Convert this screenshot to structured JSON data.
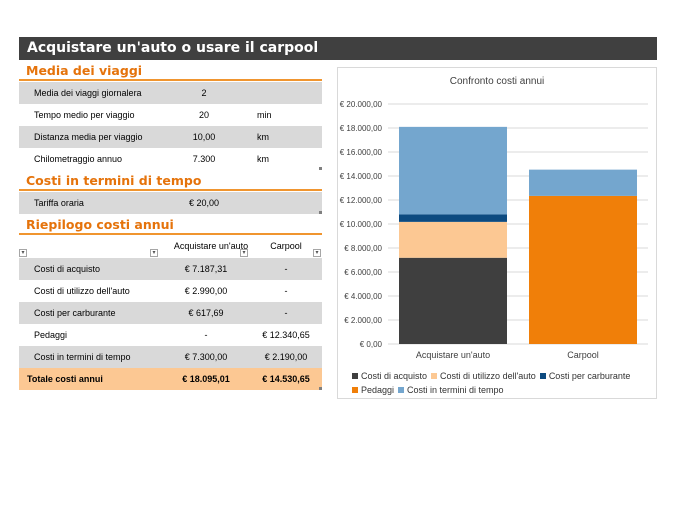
{
  "title": "Acquistare un'auto o usare il carpool",
  "trips": {
    "heading": "Media dei viaggi",
    "rows": [
      {
        "label": "Media dei viaggi giornalera",
        "value": "2",
        "unit": ""
      },
      {
        "label": "Tempo medio per viaggio",
        "value": "20",
        "unit": "min"
      },
      {
        "label": "Distanza media per viaggio",
        "value": "10,00",
        "unit": "km"
      },
      {
        "label": "Chilometraggio annuo",
        "value": "7.300",
        "unit": "km"
      }
    ]
  },
  "time_costs": {
    "heading": "Costi in termini di tempo",
    "rows": [
      {
        "label": "Tariffa oraria",
        "value": "€ 20,00"
      }
    ]
  },
  "summary": {
    "heading": "Riepilogo costi annui",
    "col1": "Acquistare un'auto",
    "col2": "Carpool",
    "rows": [
      {
        "label": "Costi di acquisto",
        "car": "€ 7.187,31",
        "pool": "-"
      },
      {
        "label": "Costi di utilizzo dell'auto",
        "car": "€ 2.990,00",
        "pool": "-"
      },
      {
        "label": "Costi per carburante",
        "car": "€ 617,69",
        "pool": "-"
      },
      {
        "label": "Pedaggi",
        "car": "-",
        "pool": "€ 12.340,65"
      },
      {
        "label": "Costi in termini di tempo",
        "car": "€ 7.300,00",
        "pool": "€ 2.190,00"
      }
    ],
    "total": {
      "label": "Totale costi annui",
      "car": "€ 18.095,01",
      "pool": "€ 14.530,65"
    }
  },
  "chart_data": {
    "type": "bar",
    "stacked": true,
    "title": "Confronto costi annui",
    "categories": [
      "Acquistare un'auto",
      "Carpool"
    ],
    "ylim": [
      0,
      20000
    ],
    "yticks": [
      0,
      2000,
      4000,
      6000,
      8000,
      10000,
      12000,
      14000,
      16000,
      18000,
      20000
    ],
    "ytick_labels": [
      "€ 0,00",
      "€ 2.000,00",
      "€ 4.000,00",
      "€ 6.000,00",
      "€ 8.000,00",
      "€ 10.000,00",
      "€ 12.000,00",
      "€ 14.000,00",
      "€ 16.000,00",
      "€ 18.000,00",
      "€ 20.000,00"
    ],
    "grid": true,
    "legend_position": "bottom",
    "series": [
      {
        "name": "Costi di acquisto",
        "color": "#3f3f3f",
        "values": [
          7187.31,
          0
        ]
      },
      {
        "name": "Costi di utilizzo dell'auto",
        "color": "#fcc893",
        "values": [
          2990,
          0
        ]
      },
      {
        "name": "Costi per carburante",
        "color": "#0c4a80",
        "values": [
          617.69,
          0
        ]
      },
      {
        "name": "Pedaggi",
        "color": "#f07f09",
        "values": [
          0,
          12340.65
        ]
      },
      {
        "name": "Costi in termini di tempo",
        "color": "#74a6ce",
        "values": [
          7300,
          2190
        ]
      }
    ]
  }
}
